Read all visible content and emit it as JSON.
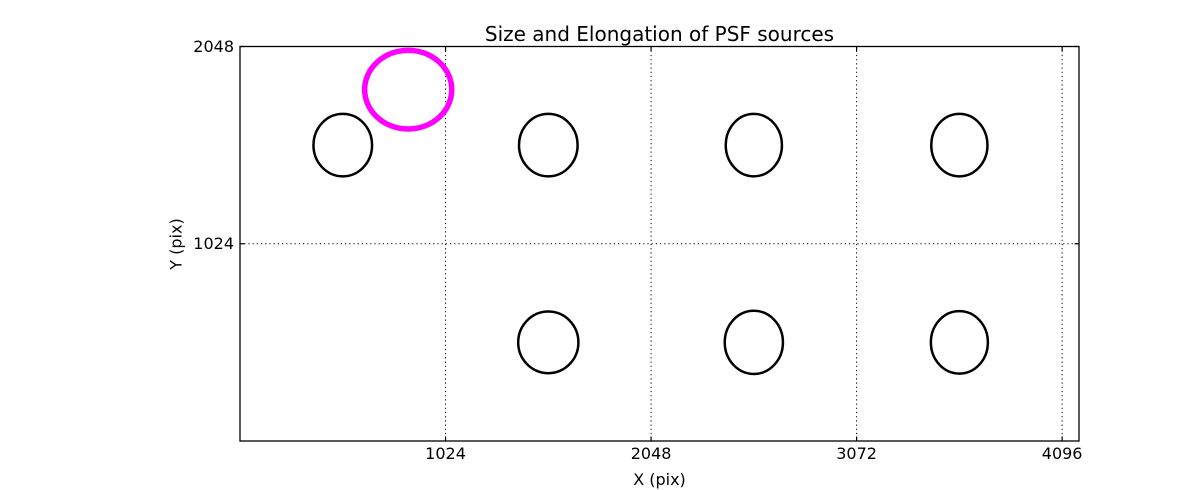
{
  "figure": {
    "title": "Size and Elongation of PSF sources",
    "xlabel": "X (pix)",
    "ylabel": "Y (pix)"
  },
  "colors": {
    "background": "#ffffff",
    "text": "#000000",
    "axis": "#000000",
    "grid": "#000000",
    "source_stroke": "#000000",
    "highlight_stroke": "#ff00ff"
  },
  "chart_data": {
    "type": "scatter",
    "title": "Size and Elongation of PSF sources",
    "xlabel": "X (pix)",
    "ylabel": "Y (pix)",
    "xlim": [
      0,
      4180
    ],
    "ylim": [
      0,
      2048
    ],
    "x_ticks": [
      {
        "value": 1024,
        "label": "1024"
      },
      {
        "value": 2048,
        "label": "2048"
      },
      {
        "value": 3072,
        "label": "3072"
      },
      {
        "value": 4096,
        "label": "4096"
      }
    ],
    "y_ticks": [
      {
        "value": 1024,
        "label": "1024"
      },
      {
        "value": 2048,
        "label": "2048"
      }
    ],
    "grid": {
      "style": "dotted",
      "x_values": [
        1024,
        2048,
        3072,
        4096
      ],
      "y_values": [
        1024
      ]
    },
    "legend": "none",
    "ellipses": [
      {
        "role": "psf-source",
        "x": 512,
        "y": 1536,
        "rx": 146,
        "ry": 162,
        "color": "#000000",
        "linewidth": 2.5
      },
      {
        "role": "psf-source",
        "x": 1536,
        "y": 1536,
        "rx": 146,
        "ry": 162,
        "color": "#000000",
        "linewidth": 2.5
      },
      {
        "role": "psf-source",
        "x": 2560,
        "y": 1536,
        "rx": 140,
        "ry": 162,
        "color": "#000000",
        "linewidth": 2.5
      },
      {
        "role": "psf-source",
        "x": 3584,
        "y": 1536,
        "rx": 140,
        "ry": 162,
        "color": "#000000",
        "linewidth": 2.5
      },
      {
        "role": "psf-source",
        "x": 1536,
        "y": 512,
        "rx": 150,
        "ry": 160,
        "color": "#000000",
        "linewidth": 2.5
      },
      {
        "role": "psf-source",
        "x": 2560,
        "y": 512,
        "rx": 145,
        "ry": 164,
        "color": "#000000",
        "linewidth": 2.5
      },
      {
        "role": "psf-source",
        "x": 3584,
        "y": 512,
        "rx": 142,
        "ry": 162,
        "color": "#000000",
        "linewidth": 2.5
      },
      {
        "role": "highlighted-psf-source",
        "x": 838,
        "y": 1824,
        "rx": 217,
        "ry": 204,
        "color": "#ff00ff",
        "linewidth": 5.5
      }
    ]
  }
}
